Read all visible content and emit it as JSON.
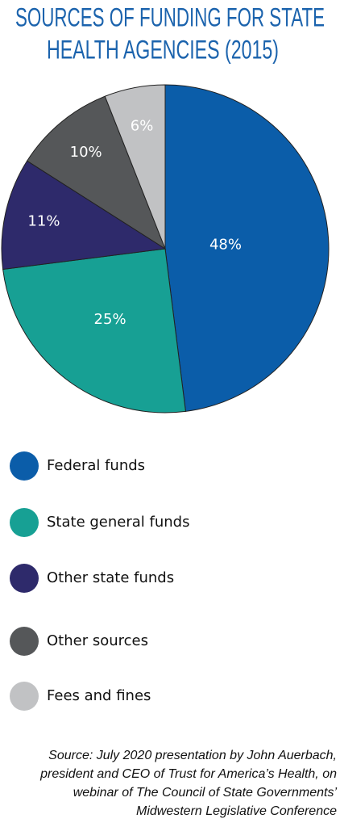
{
  "chart_data": {
    "type": "pie",
    "title": [
      "SOURCES OF FUNDING FOR STATE",
      "HEALTH AGENCIES (2015)"
    ],
    "categories": [
      "Federal funds",
      "State general funds",
      "Other state funds",
      "Other sources",
      "Fees and fines"
    ],
    "values": [
      48,
      25,
      11,
      10,
      6
    ],
    "value_labels": [
      "48%",
      "25%",
      "11%",
      "10%",
      "6%"
    ],
    "colors": [
      "#0b5da9",
      "#17a094",
      "#2e2a6b",
      "#555759",
      "#c1c2c4"
    ],
    "caption": [
      "Source: July 2020 presentation by John Auerbach,",
      "president and CEO of Trust for America’s Health, on",
      "webinar of The Council of State Governments’",
      "Midwestern Legislative Conference"
    ]
  }
}
